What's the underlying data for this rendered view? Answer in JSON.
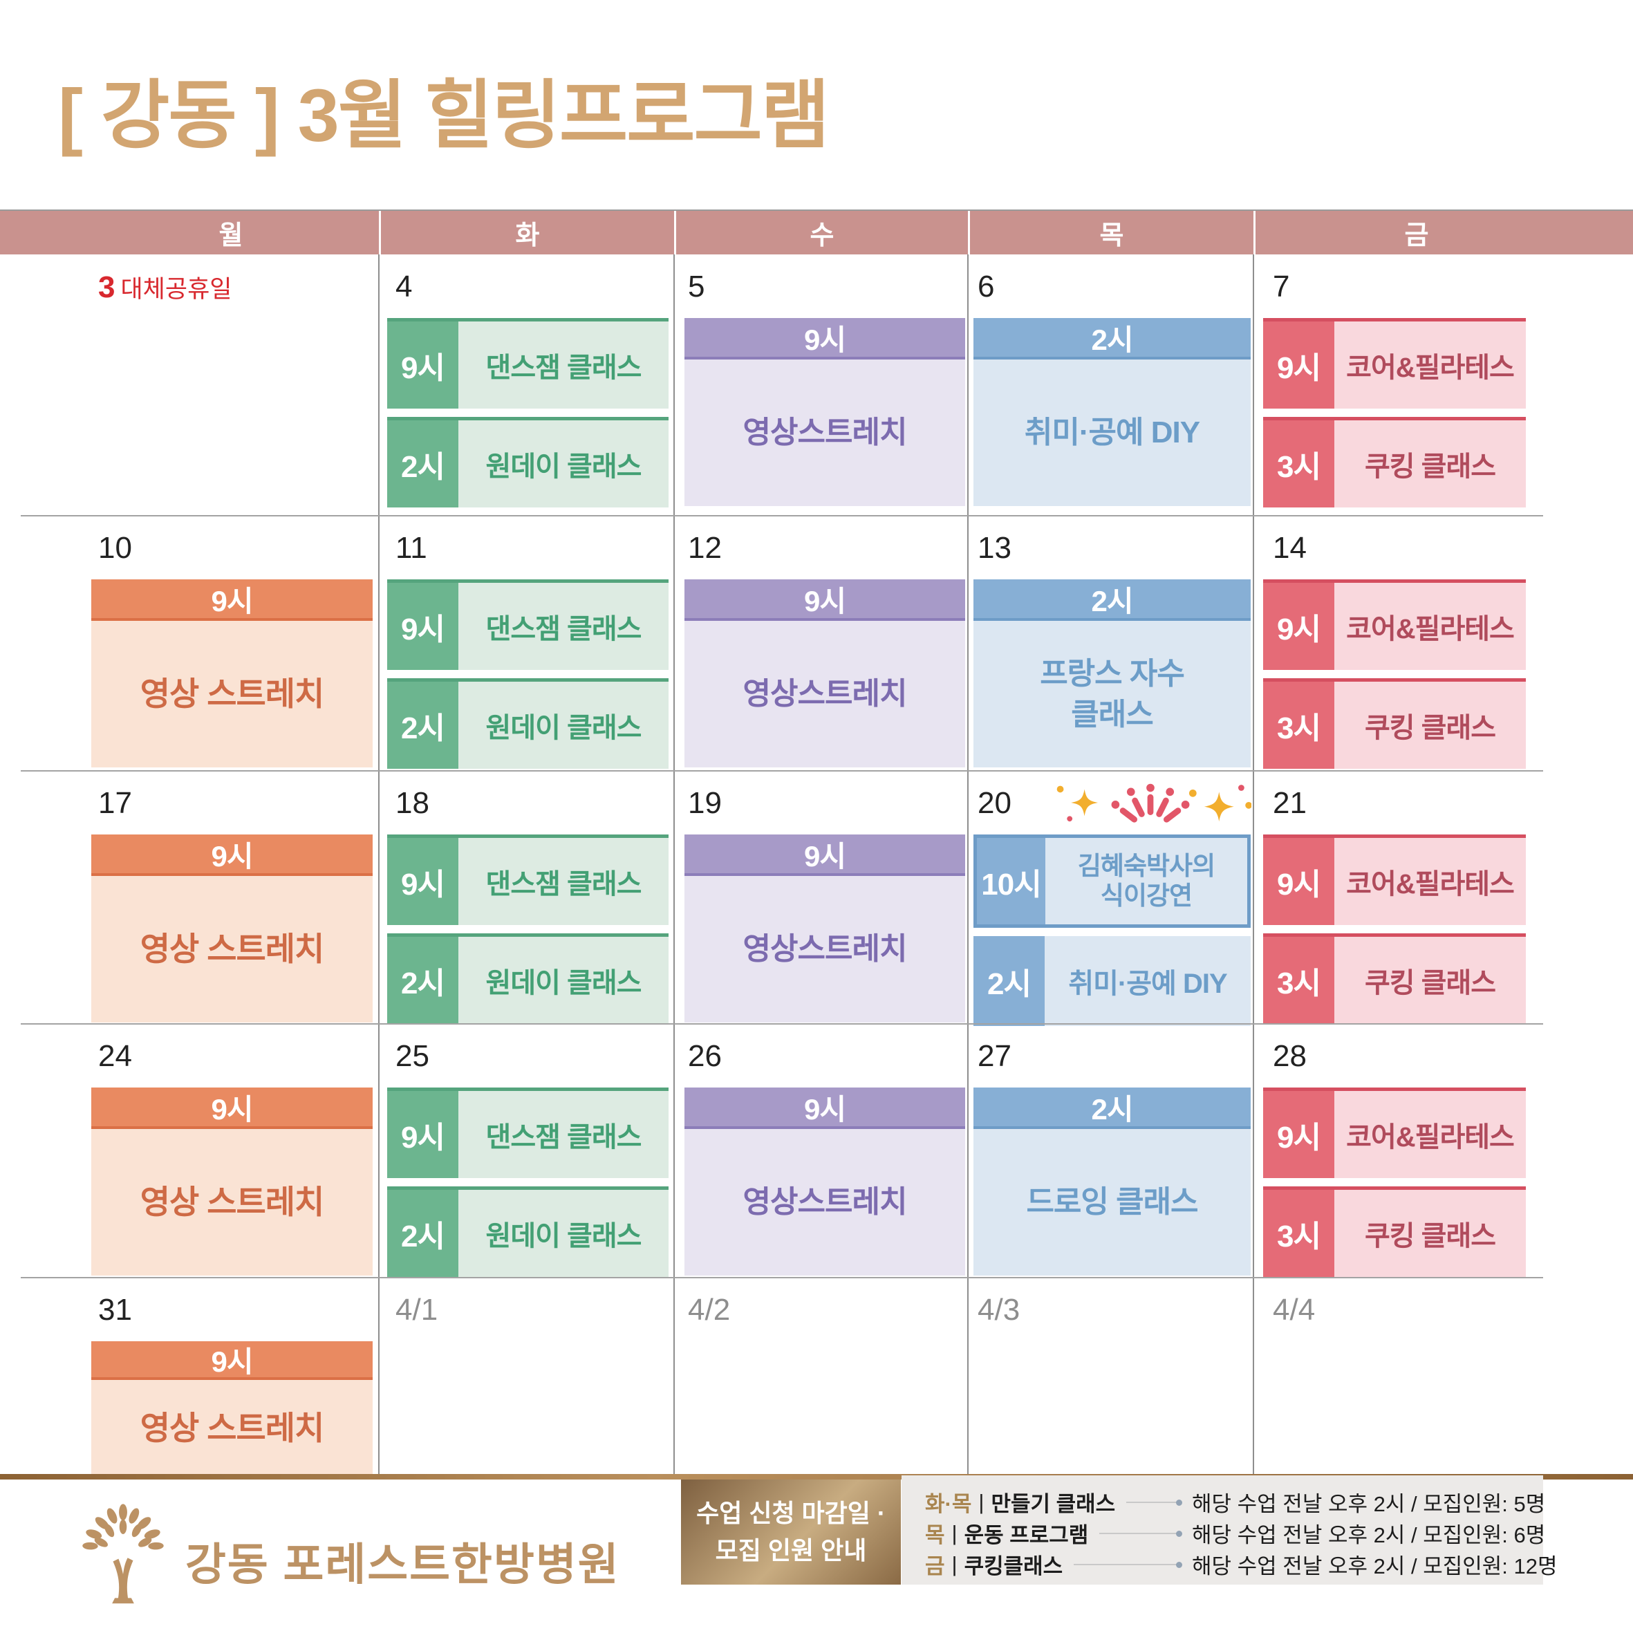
{
  "title": "[ 강동 ] 3월 힐링프로그램",
  "weekday_header": [
    "월",
    "화",
    "수",
    "목",
    "금"
  ],
  "colors": {
    "title_gold": "#D2A571",
    "weekday_band": "#C9928E",
    "holiday_red": "#D8282E",
    "green_chip": "#6CB58F",
    "green_body": "#DDEBE2",
    "green_text": "#43A074",
    "orange_bar": "#E98A61",
    "orange_body": "#FAE3D4",
    "orange_text": "#CE6A45",
    "purple_bar": "#A79AC8",
    "purple_body": "#E8E4F1",
    "purple_text": "#7C6BAF",
    "blue_bar": "#87AFD5",
    "blue_body": "#DCE7F2",
    "blue_text": "#6C9DC8",
    "red_chip": "#E56B77",
    "red_body": "#F9D8DD",
    "red_text": "#B04B5C",
    "footer_gold": "#BC9264"
  },
  "calendar": {
    "rows": [
      [
        {
          "date": "3",
          "holiday": "대체공휴일",
          "blocks": []
        },
        {
          "date": "4",
          "blocks": [
            {
              "type": "chip",
              "theme": "green",
              "time": "9시",
              "title": "댄스잼 클래스"
            },
            {
              "type": "chip",
              "theme": "green",
              "time": "2시",
              "title": "원데이 클래스"
            }
          ]
        },
        {
          "date": "5",
          "blocks": [
            {
              "type": "banner",
              "theme": "purple",
              "time": "9시",
              "title": "영상스트레치"
            }
          ]
        },
        {
          "date": "6",
          "blocks": [
            {
              "type": "banner",
              "theme": "blue",
              "time": "2시",
              "title": "취미·공예 DIY"
            }
          ]
        },
        {
          "date": "7",
          "blocks": [
            {
              "type": "chip",
              "theme": "red",
              "time": "9시",
              "title": "코어&필라테스"
            },
            {
              "type": "chip",
              "theme": "red",
              "time": "3시",
              "title": "쿠킹 클래스"
            }
          ]
        }
      ],
      [
        {
          "date": "10",
          "blocks": [
            {
              "type": "banner",
              "theme": "orange",
              "time": "9시",
              "title": "영상 스트레치"
            }
          ]
        },
        {
          "date": "11",
          "blocks": [
            {
              "type": "chip",
              "theme": "green",
              "time": "9시",
              "title": "댄스잼 클래스"
            },
            {
              "type": "chip",
              "theme": "green",
              "time": "2시",
              "title": "원데이 클래스"
            }
          ]
        },
        {
          "date": "12",
          "blocks": [
            {
              "type": "banner",
              "theme": "purple",
              "time": "9시",
              "title": "영상스트레치"
            }
          ]
        },
        {
          "date": "13",
          "blocks": [
            {
              "type": "banner",
              "theme": "blue",
              "time": "2시",
              "title": "프랑스 자수 클래스",
              "title_lines": [
                "프랑스 자수",
                "클래스"
              ]
            }
          ]
        },
        {
          "date": "14",
          "blocks": [
            {
              "type": "chip",
              "theme": "red",
              "time": "9시",
              "title": "코어&필라테스"
            },
            {
              "type": "chip",
              "theme": "red",
              "time": "3시",
              "title": "쿠킹 클래스"
            }
          ]
        }
      ],
      [
        {
          "date": "17",
          "blocks": [
            {
              "type": "banner",
              "theme": "orange",
              "time": "9시",
              "title": "영상 스트레치"
            }
          ]
        },
        {
          "date": "18",
          "blocks": [
            {
              "type": "chip",
              "theme": "green",
              "time": "9시",
              "title": "댄스잼 클래스"
            },
            {
              "type": "chip",
              "theme": "green",
              "time": "2시",
              "title": "원데이 클래스"
            }
          ]
        },
        {
          "date": "19",
          "blocks": [
            {
              "type": "banner",
              "theme": "purple",
              "time": "9시",
              "title": "영상스트레치"
            }
          ]
        },
        {
          "date": "20",
          "decoration": "sparkles",
          "blocks": [
            {
              "type": "chip",
              "theme": "blue",
              "outlined": true,
              "time": "10시",
              "title": "김혜숙박사의 식이강연",
              "title_lines": [
                "김혜숙박사의",
                "식이강연"
              ]
            },
            {
              "type": "chip",
              "theme": "blue",
              "time": "2시",
              "title": "취미·공예 DIY"
            }
          ]
        },
        {
          "date": "21",
          "blocks": [
            {
              "type": "chip",
              "theme": "red",
              "time": "9시",
              "title": "코어&필라테스"
            },
            {
              "type": "chip",
              "theme": "red",
              "time": "3시",
              "title": "쿠킹 클래스"
            }
          ]
        }
      ],
      [
        {
          "date": "24",
          "blocks": [
            {
              "type": "banner",
              "theme": "orange",
              "time": "9시",
              "title": "영상 스트레치"
            }
          ]
        },
        {
          "date": "25",
          "blocks": [
            {
              "type": "chip",
              "theme": "green",
              "time": "9시",
              "title": "댄스잼 클래스"
            },
            {
              "type": "chip",
              "theme": "green",
              "time": "2시",
              "title": "원데이 클래스"
            }
          ]
        },
        {
          "date": "26",
          "blocks": [
            {
              "type": "banner",
              "theme": "purple",
              "time": "9시",
              "title": "영상스트레치"
            }
          ]
        },
        {
          "date": "27",
          "blocks": [
            {
              "type": "banner",
              "theme": "blue",
              "time": "2시",
              "title": "드로잉 클래스"
            }
          ]
        },
        {
          "date": "28",
          "blocks": [
            {
              "type": "chip",
              "theme": "red",
              "time": "9시",
              "title": "코어&필라테스"
            },
            {
              "type": "chip",
              "theme": "red",
              "time": "3시",
              "title": "쿠킹 클래스"
            }
          ]
        }
      ],
      [
        {
          "date": "31",
          "blocks": [
            {
              "type": "banner",
              "theme": "orange",
              "compact": true,
              "time": "9시",
              "title": "영상 스트레치"
            }
          ]
        },
        {
          "date": "4/1",
          "muted": true,
          "blocks": []
        },
        {
          "date": "4/2",
          "muted": true,
          "blocks": []
        },
        {
          "date": "4/3",
          "muted": true,
          "blocks": []
        },
        {
          "date": "4/4",
          "muted": true,
          "blocks": []
        }
      ]
    ]
  },
  "footer": {
    "hospital_name": "강동 포레스트한방병원",
    "notice_box": [
      "수업 신청 마감일 ·",
      "모집 인원 안내"
    ],
    "legend": [
      {
        "days": "화·목",
        "program": "만들기 클래스",
        "info": "해당 수업 전날 오후 2시 / 모집인원: 5명"
      },
      {
        "days": "목",
        "program": "운동 프로그램",
        "info": "해당 수업 전날 오후 2시 / 모집인원: 6명"
      },
      {
        "days": "금",
        "program": "쿠킹클래스",
        "info": "해당 수업 전날 오후 2시 / 모집인원: 12명"
      }
    ]
  }
}
